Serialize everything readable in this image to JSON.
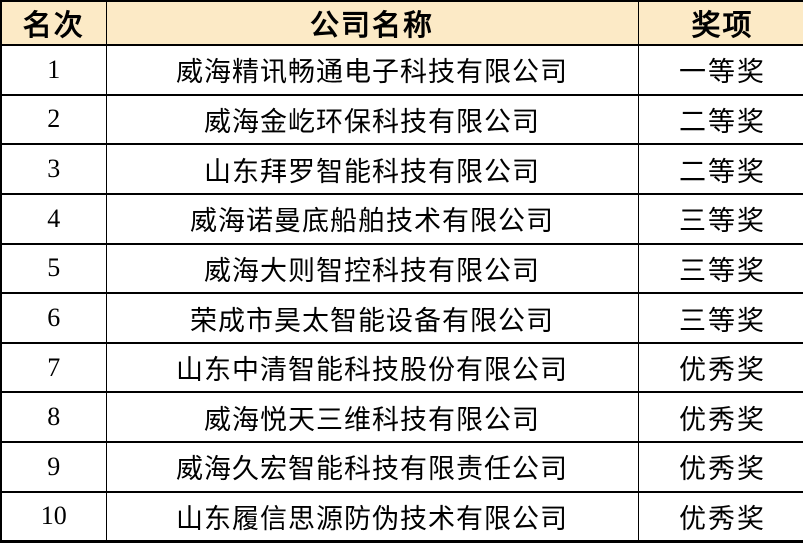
{
  "table": {
    "columns": [
      {
        "label": "名次"
      },
      {
        "label": "公司名称"
      },
      {
        "label": "奖项"
      }
    ],
    "rows": [
      {
        "rank": "1",
        "company": "威海精讯畅通电子科技有限公司",
        "award": "一等奖"
      },
      {
        "rank": "2",
        "company": "威海金屹环保科技有限公司",
        "award": "二等奖"
      },
      {
        "rank": "3",
        "company": "山东拜罗智能科技有限公司",
        "award": "二等奖"
      },
      {
        "rank": "4",
        "company": "威海诺曼底船舶技术有限公司",
        "award": "三等奖"
      },
      {
        "rank": "5",
        "company": "威海大则智控科技有限公司",
        "award": "三等奖"
      },
      {
        "rank": "6",
        "company": "荣成市昊太智能设备有限公司",
        "award": "三等奖"
      },
      {
        "rank": "7",
        "company": "山东中清智能科技股份有限公司",
        "award": "优秀奖"
      },
      {
        "rank": "8",
        "company": "威海悦天三维科技有限公司",
        "award": "优秀奖"
      },
      {
        "rank": "9",
        "company": "威海久宏智能科技有限责任公司",
        "award": "优秀奖"
      },
      {
        "rank": "10",
        "company": "山东履信思源防伪技术有限公司",
        "award": "优秀奖"
      }
    ],
    "colors": {
      "header_bg": "#FCEAC6",
      "border": "#000000",
      "text": "#000000"
    }
  }
}
